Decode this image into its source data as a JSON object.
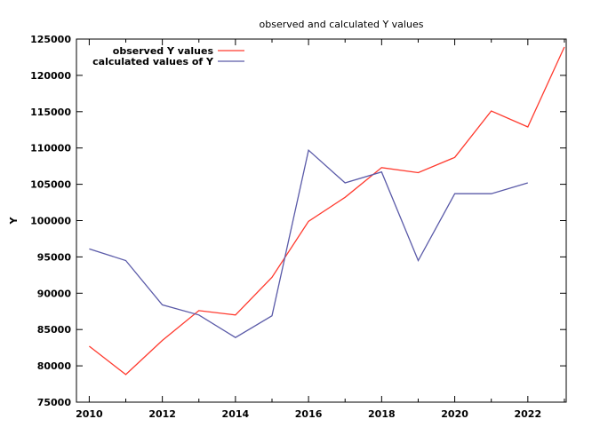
{
  "chart_data": {
    "type": "line",
    "title": "observed and calculated Y values",
    "xlabel": "",
    "ylabel": "Y",
    "xlim": [
      2009.65,
      2023.05
    ],
    "ylim": [
      75000,
      125000
    ],
    "xticks": [
      2010,
      2012,
      2014,
      2016,
      2018,
      2020,
      2022
    ],
    "yticks": [
      75000,
      80000,
      85000,
      90000,
      95000,
      100000,
      105000,
      110000,
      115000,
      120000,
      125000
    ],
    "grid": false,
    "legend_position": "top-left",
    "series": [
      {
        "name": "observed Y values",
        "color": "#ff3a2e",
        "x": [
          2010,
          2011,
          2012,
          2013,
          2014,
          2015,
          2016,
          2017,
          2018,
          2019,
          2020,
          2021,
          2022,
          2023
        ],
        "y": [
          82700,
          78800,
          83500,
          87600,
          87000,
          92200,
          99900,
          103200,
          107300,
          106600,
          108700,
          115100,
          112900,
          123900
        ]
      },
      {
        "name": "calculated values of Y",
        "color": "#5a5aa8",
        "x": [
          2010,
          2011,
          2012,
          2013,
          2014,
          2015,
          2016,
          2017,
          2018,
          2019,
          2020,
          2021,
          2022
        ],
        "y": [
          96100,
          94500,
          88400,
          87000,
          83900,
          86900,
          109700,
          105200,
          106700,
          94500,
          103700,
          103700,
          105200
        ]
      }
    ]
  }
}
